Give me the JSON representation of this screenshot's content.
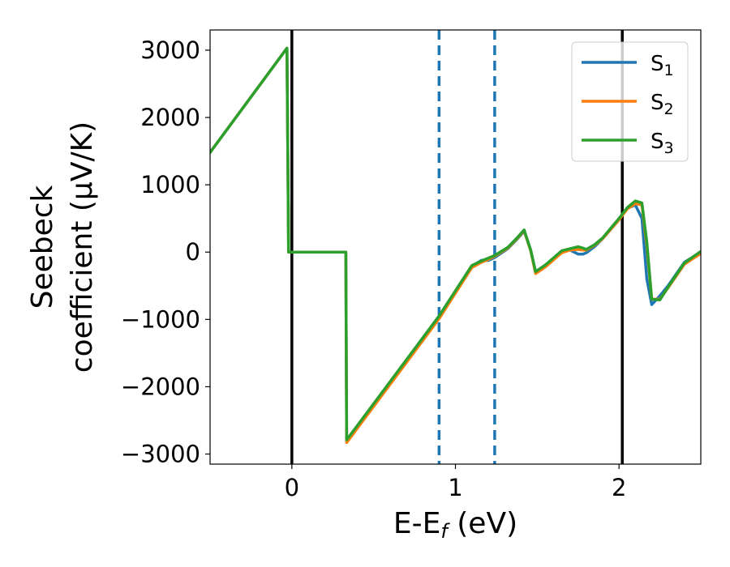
{
  "chart_data": {
    "type": "line",
    "xlabel": "E-E",
    "xlabel_sub": "f",
    "xlabel_unit": " (eV)",
    "ylabel_line1": "Seebeck",
    "ylabel_line2": "coefficient  (μV/K)",
    "xlim": [
      -0.5,
      2.5
    ],
    "ylim": [
      -3150,
      3300
    ],
    "x_ticks": [
      0,
      1,
      2
    ],
    "x_tick_labels": [
      "0",
      "1",
      "2"
    ],
    "y_ticks": [
      -3000,
      -2000,
      -1000,
      0,
      1000,
      2000,
      3000
    ],
    "y_tick_labels": [
      "−3000",
      "−2000",
      "−1000",
      "0",
      "1000",
      "2000",
      "3000"
    ],
    "grid": false,
    "legend_position": "top-right",
    "vlines": [
      {
        "x": 0.0,
        "style": "solid",
        "color": "#000000"
      },
      {
        "x": 2.02,
        "style": "solid",
        "color": "#000000"
      },
      {
        "x": 0.9,
        "style": "dashed",
        "color": "#1f77b4"
      },
      {
        "x": 1.24,
        "style": "dashed",
        "color": "#1f77b4"
      }
    ],
    "series": [
      {
        "name": "S",
        "sub": "1",
        "color": "#1f77b4",
        "x": [
          -0.5,
          -0.03,
          -0.02,
          0.33,
          0.335,
          0.9,
          1.1,
          1.16,
          1.2,
          1.24,
          1.32,
          1.38,
          1.42,
          1.46,
          1.49,
          1.55,
          1.65,
          1.7,
          1.75,
          1.78,
          1.8,
          1.85,
          1.9,
          2.0,
          2.05,
          2.1,
          2.14,
          2.17,
          2.2,
          2.25,
          2.3,
          2.4,
          2.5
        ],
        "y": [
          1480,
          3030,
          0,
          0,
          -2800,
          -950,
          -210,
          -120,
          -125,
          -80,
          50,
          200,
          310,
          30,
          -300,
          -200,
          10,
          30,
          -30,
          -30,
          -10,
          80,
          200,
          480,
          650,
          700,
          500,
          -400,
          -780,
          -650,
          -500,
          -150,
          0
        ]
      },
      {
        "name": "S",
        "sub": "2",
        "color": "#ff7f0e",
        "x": [
          -0.5,
          -0.03,
          -0.02,
          0.33,
          0.335,
          0.9,
          1.1,
          1.16,
          1.2,
          1.24,
          1.32,
          1.38,
          1.42,
          1.46,
          1.49,
          1.55,
          1.65,
          1.7,
          1.75,
          1.78,
          1.8,
          1.85,
          1.9,
          2.0,
          2.05,
          2.1,
          2.14,
          2.17,
          2.2,
          2.25,
          2.3,
          2.4,
          2.5
        ],
        "y": [
          1480,
          3030,
          0,
          0,
          -2830,
          -990,
          -230,
          -150,
          -110,
          -60,
          60,
          210,
          320,
          20,
          -320,
          -220,
          -10,
          30,
          40,
          30,
          30,
          100,
          200,
          480,
          640,
          720,
          700,
          100,
          -700,
          -700,
          -530,
          -180,
          -20
        ]
      },
      {
        "name": "S",
        "sub": "3",
        "color": "#2ca02c",
        "x": [
          -0.5,
          -0.03,
          -0.02,
          0.33,
          0.335,
          0.9,
          1.1,
          1.16,
          1.2,
          1.24,
          1.32,
          1.38,
          1.42,
          1.46,
          1.49,
          1.55,
          1.65,
          1.7,
          1.75,
          1.78,
          1.8,
          1.85,
          1.9,
          2.0,
          2.05,
          2.1,
          2.14,
          2.17,
          2.2,
          2.25,
          2.3,
          2.4,
          2.5
        ],
        "y": [
          1480,
          3030,
          0,
          0,
          -2790,
          -950,
          -200,
          -130,
          -90,
          -50,
          70,
          220,
          330,
          30,
          -290,
          -190,
          20,
          50,
          80,
          60,
          40,
          110,
          210,
          500,
          660,
          760,
          730,
          150,
          -700,
          -710,
          -520,
          -160,
          10
        ]
      }
    ]
  }
}
